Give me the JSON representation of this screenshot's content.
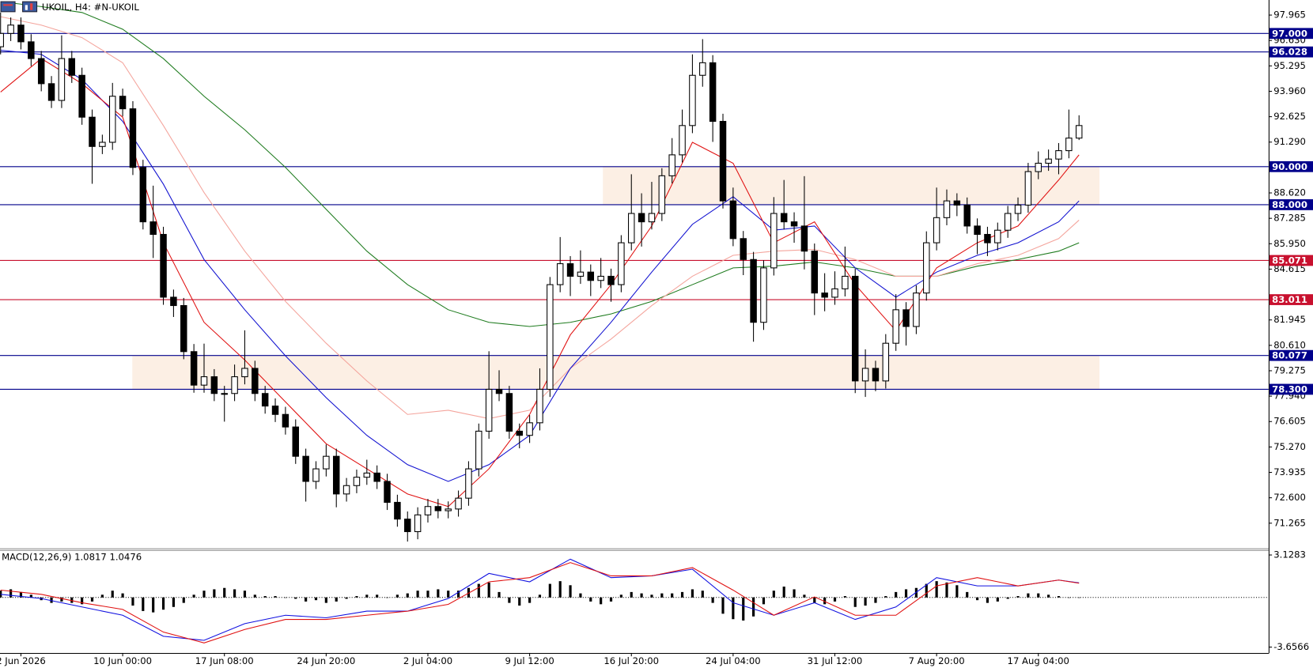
{
  "chart_data": [
    {
      "type": "candlestick",
      "title": "UKOIL, H4:  #N-UKOIL",
      "categories": [
        null,
        null,
        "2 Jun 2026",
        null,
        null,
        null,
        null,
        null,
        null,
        null,
        null,
        null,
        "10 Jun 00:00",
        null,
        null,
        null,
        null,
        null,
        null,
        null,
        null,
        null,
        "17 Jun 08:00",
        null,
        null,
        null,
        null,
        null,
        null,
        null,
        null,
        null,
        "24 Jun 20:00",
        null,
        null,
        null,
        null,
        null,
        null,
        null,
        null,
        null,
        "2 Jul 04:00",
        null,
        null,
        null,
        null,
        null,
        null,
        null,
        null,
        null,
        "9 Jul 12:00",
        null,
        null,
        null,
        null,
        null,
        null,
        null,
        null,
        null,
        "16 Jul 20:00",
        null,
        null,
        null,
        null,
        null,
        null,
        null,
        null,
        null,
        "24 Jul 04:00",
        null,
        null,
        null,
        null,
        null,
        null,
        null,
        null,
        null,
        "31 Jul 12:00",
        null,
        null,
        null,
        null,
        null,
        null,
        null,
        null,
        null,
        "7 Aug 20:00",
        null,
        null,
        null,
        null,
        null,
        null,
        null,
        null,
        null,
        "17 Aug 04:00",
        null,
        null,
        null,
        null
      ],
      "open": [
        96.3,
        97.0,
        97.44,
        96.56,
        95.68,
        94.36,
        93.48,
        95.68,
        94.8,
        92.6,
        91.06,
        91.28,
        93.7,
        93.04,
        89.96,
        87.1,
        86.44,
        83.14,
        82.7,
        80.28,
        78.52,
        78.96,
        78.08,
        78.08,
        78.96,
        79.4,
        78.08,
        77.42,
        76.98,
        76.32,
        74.78,
        73.46,
        74.12,
        74.78,
        72.8,
        73.24,
        73.68,
        73.9,
        73.46,
        72.36,
        71.48,
        70.82,
        71.7,
        72.14,
        71.92,
        72.01,
        72.58,
        74.12,
        76.1,
        78.3,
        78.08,
        76.1,
        75.88,
        76.54,
        78.3,
        83.8,
        84.9,
        84.24,
        84.46,
        84.02,
        84.24,
        83.8,
        86.0,
        87.54,
        87.1,
        87.54,
        89.52,
        90.62,
        92.16,
        94.8,
        95.46,
        92.38,
        88.2,
        86.22,
        85.12,
        81.82,
        84.68,
        87.54,
        87.1,
        86.88,
        85.56,
        83.36,
        83.14,
        83.58,
        84.24,
        78.74,
        79.4,
        78.74,
        80.72,
        82.48,
        81.6,
        83.36,
        86.0,
        87.32,
        88.2,
        87.98,
        86.88,
        86.44,
        86.0,
        86.66,
        87.54,
        87.98,
        89.74,
        90.18,
        90.4,
        90.84,
        91.5
      ],
      "high": [
        98.1,
        97.84,
        97.84,
        96.96,
        96.08,
        94.76,
        96.9,
        96.08,
        95.2,
        93.0,
        91.68,
        94.4,
        94.1,
        93.44,
        90.36,
        89.0,
        86.84,
        83.54,
        83.1,
        80.68,
        80.7,
        79.36,
        78.48,
        79.6,
        81.4,
        79.8,
        78.48,
        77.82,
        77.38,
        76.72,
        75.18,
        74.52,
        75.4,
        75.18,
        73.64,
        74.08,
        74.6,
        74.3,
        73.86,
        72.76,
        71.88,
        72.1,
        72.54,
        72.54,
        72.41,
        72.98,
        74.52,
        76.5,
        80.3,
        79.3,
        78.48,
        76.5,
        76.94,
        79.4,
        84.2,
        86.3,
        85.3,
        85.6,
        84.86,
        85.2,
        84.64,
        86.4,
        89.6,
        88.6,
        89.2,
        89.92,
        91.5,
        93.0,
        95.9,
        96.7,
        95.86,
        92.78,
        88.9,
        86.62,
        85.52,
        85.08,
        88.4,
        89.3,
        87.6,
        89.5,
        85.96,
        84.4,
        84.5,
        85.8,
        84.64,
        80.4,
        79.8,
        81.2,
        83.3,
        82.88,
        83.76,
        86.6,
        88.9,
        88.8,
        88.6,
        88.38,
        87.28,
        86.84,
        87.06,
        87.94,
        88.38,
        90.2,
        90.8,
        90.9,
        91.24,
        93.0,
        92.7
      ],
      "low": [
        95.9,
        96.6,
        96.16,
        95.28,
        93.96,
        93.08,
        93.08,
        94.4,
        92.2,
        89.1,
        90.66,
        90.88,
        92.64,
        89.56,
        86.7,
        85.2,
        82.74,
        82.1,
        79.88,
        78.12,
        78.12,
        77.68,
        76.6,
        77.68,
        78.56,
        77.68,
        77.02,
        76.58,
        75.92,
        74.38,
        72.4,
        73.06,
        73.72,
        72.1,
        72.4,
        72.84,
        73.28,
        73.06,
        71.96,
        71.08,
        70.3,
        70.42,
        71.3,
        71.52,
        71.52,
        71.61,
        72.18,
        73.72,
        75.7,
        77.68,
        75.7,
        75.2,
        75.48,
        76.14,
        77.9,
        83.4,
        83.2,
        83.84,
        83.2,
        83.62,
        82.9,
        83.4,
        85.6,
        85.8,
        86.7,
        87.14,
        89.12,
        90.22,
        91.76,
        94.2,
        91.3,
        87.8,
        85.82,
        84.3,
        80.8,
        81.42,
        84.28,
        86.7,
        86.0,
        84.6,
        82.2,
        82.4,
        82.74,
        83.18,
        78.1,
        77.9,
        78.2,
        78.34,
        80.32,
        80.6,
        81.2,
        82.96,
        85.6,
        86.92,
        87.4,
        86.48,
        85.4,
        85.3,
        85.6,
        86.26,
        87.14,
        87.58,
        89.34,
        89.78,
        89.6,
        90.44,
        91.4
      ],
      "close": [
        97.0,
        97.44,
        96.56,
        95.68,
        94.36,
        93.48,
        95.68,
        94.8,
        92.6,
        91.06,
        91.28,
        93.7,
        93.04,
        89.96,
        87.1,
        86.44,
        83.14,
        82.7,
        80.28,
        78.52,
        78.96,
        78.08,
        78.08,
        78.96,
        79.4,
        78.08,
        77.42,
        76.98,
        76.32,
        74.78,
        73.46,
        74.12,
        74.78,
        72.8,
        73.24,
        73.68,
        73.9,
        73.46,
        72.36,
        71.48,
        70.82,
        71.7,
        72.14,
        71.92,
        72.01,
        72.58,
        74.12,
        76.1,
        78.3,
        78.08,
        76.1,
        75.88,
        76.54,
        78.3,
        83.8,
        84.9,
        84.24,
        84.46,
        84.02,
        84.24,
        83.8,
        86.0,
        87.54,
        87.1,
        87.54,
        89.52,
        90.62,
        92.16,
        94.8,
        95.46,
        92.38,
        88.2,
        86.22,
        85.12,
        81.82,
        84.68,
        87.54,
        87.1,
        86.88,
        85.56,
        83.36,
        83.14,
        83.58,
        84.24,
        78.74,
        79.4,
        78.74,
        80.72,
        82.48,
        81.6,
        83.36,
        86.0,
        87.32,
        88.2,
        87.98,
        86.88,
        86.44,
        86.0,
        86.66,
        87.54,
        87.98,
        89.74,
        90.18,
        90.4,
        90.84,
        91.5,
        92.16
      ],
      "bull_color": "#ffffff",
      "bear_color": "#000000",
      "ylim": [
        69.945,
        98.757
      ],
      "yticks": [
        97.965,
        {
          "value": 96.63,
          "label": "96.630"
        },
        95.295,
        {
          "value": 93.96,
          "label": "93.960"
        },
        92.625,
        {
          "value": 91.29,
          "label": "91.290"
        },
        {
          "value": 88.62,
          "label": "88.620"
        },
        87.285,
        {
          "value": 85.95,
          "label": "85.950"
        },
        84.615,
        81.945,
        {
          "value": 80.61,
          "label": "80.610"
        },
        79.275,
        {
          "value": 77.94,
          "label": "77.940"
        },
        76.605,
        {
          "value": 75.27,
          "label": "75.270"
        },
        73.935,
        {
          "value": 72.6,
          "label": "72.600"
        },
        71.265
      ],
      "moving_averages": [
        {
          "color": "#1e7b1e",
          "x": [
            0,
            4,
            8,
            12,
            16,
            20,
            24,
            28,
            32,
            36,
            40,
            44,
            48,
            52,
            56,
            60,
            64,
            68,
            72,
            76,
            80,
            84,
            88,
            92,
            96,
            100,
            104,
            106
          ],
          "values": [
            98.67,
            98.41,
            98.1,
            97.22,
            95.68,
            93.7,
            91.94,
            89.96,
            87.76,
            85.56,
            83.8,
            82.48,
            81.82,
            81.6,
            81.82,
            82.26,
            82.92,
            83.8,
            84.68,
            84.77,
            84.99,
            84.68,
            84.24,
            84.24,
            84.77,
            85.12,
            85.56,
            86.0
          ]
        },
        {
          "color": "#f4a49c",
          "x": [
            0,
            4,
            8,
            12,
            16,
            20,
            24,
            28,
            32,
            36,
            40,
            44,
            48,
            52,
            56,
            60,
            64,
            68,
            72,
            76,
            80,
            84,
            88,
            92,
            96,
            100,
            104,
            106
          ],
          "values": [
            97.88,
            97.44,
            96.78,
            95.46,
            92.16,
            88.64,
            85.56,
            82.92,
            80.72,
            78.74,
            76.98,
            77.2,
            76.76,
            77.2,
            79.4,
            80.94,
            82.7,
            84.24,
            85.34,
            85.56,
            85.65,
            85.12,
            84.24,
            84.24,
            84.9,
            85.34,
            86.22,
            87.19
          ]
        },
        {
          "color": "#1010d0",
          "x": [
            0,
            4,
            8,
            12,
            16,
            20,
            24,
            28,
            32,
            36,
            40,
            44,
            48,
            52,
            56,
            60,
            64,
            68,
            72,
            76,
            80,
            84,
            88,
            92,
            96,
            100,
            104,
            106
          ],
          "values": [
            96.12,
            95.9,
            94.58,
            92.38,
            89.08,
            85.12,
            82.48,
            80.06,
            77.86,
            75.88,
            74.34,
            73.46,
            74.34,
            75.88,
            79.4,
            81.82,
            84.46,
            86.97,
            88.42,
            86.66,
            86.88,
            84.68,
            83.14,
            84.46,
            85.34,
            86.0,
            87.1,
            88.2
          ]
        },
        {
          "color": "#e01010",
          "x": [
            0,
            4,
            8,
            12,
            16,
            20,
            24,
            28,
            32,
            36,
            40,
            44,
            48,
            52,
            56,
            60,
            64,
            68,
            72,
            76,
            80,
            84,
            88,
            92,
            96,
            100,
            104,
            106
          ],
          "values": [
            93.92,
            95.68,
            94.36,
            92.6,
            86.0,
            81.82,
            79.84,
            77.64,
            75.44,
            74.12,
            72.8,
            72.14,
            74.12,
            76.98,
            81.16,
            83.8,
            86.88,
            91.28,
            90.18,
            86.0,
            87.1,
            83.8,
            81.38,
            84.68,
            86.0,
            86.88,
            89.3,
            90.62
          ]
        }
      ],
      "levels": [
        {
          "value": 97,
          "label": "97.000",
          "color": "#00008b"
        },
        {
          "value": 96.028,
          "label": "96.028",
          "color": "#00008b"
        },
        {
          "value": 90,
          "label": "90.000",
          "color": "#00008b"
        },
        {
          "value": 88,
          "label": "88.000",
          "color": "#00008b"
        },
        {
          "value": 85.071,
          "label": "85.071",
          "color": "#c8102e"
        },
        {
          "value": 83.011,
          "label": "83.011",
          "color": "#c8102e"
        },
        {
          "value": 80.077,
          "label": "80.077",
          "color": "#00008b"
        },
        {
          "value": 78.3,
          "label": "78.300",
          "color": "#00008b"
        }
      ],
      "zone_color": "#fcefe4"
    },
    {
      "type": "macd",
      "title": "MACD(12,26,9) 1.0817 1.0476",
      "ylim": [
        -4.088,
        3.498
      ],
      "yticks": [
        3.1283,
        -3.6566
      ],
      "histogram": {
        "color": "#000000",
        "values": [
          0.5,
          0.6,
          0.4,
          0.2,
          -0.2,
          -0.4,
          -0.3,
          -0.4,
          -0.5,
          -0.3,
          0.2,
          0.5,
          0.3,
          -0.6,
          -1.0,
          -1.1,
          -0.9,
          -0.7,
          -0.4,
          0.2,
          0.5,
          0.6,
          0.7,
          0.6,
          0.5,
          0.2,
          0.1,
          0.1,
          0,
          -0.1,
          -0.3,
          -0.2,
          -0.4,
          -0.3,
          -0.1,
          0.1,
          0.2,
          0.2,
          0,
          0.2,
          0.3,
          0.5,
          0.5,
          0.6,
          0.5,
          0.5,
          0.7,
          1.0,
          1.1,
          0.4,
          -0.4,
          -0.6,
          -0.4,
          0.2,
          1.0,
          1.2,
          0.9,
          0.3,
          -0.3,
          -0.5,
          -0.3,
          0.2,
          0.4,
          0.3,
          0.2,
          0.3,
          0.3,
          0.4,
          0.6,
          0.5,
          -0.4,
          -1.2,
          -1.6,
          -1.7,
          -1.4,
          -0.5,
          0.5,
          0.8,
          0.6,
          0.2,
          -0.4,
          -0.5,
          -0.3,
          0.1,
          -0.7,
          -0.6,
          -0.4,
          0.1,
          0.4,
          0.6,
          0.7,
          1.0,
          1.2,
          1.1,
          0.9,
          0.4,
          -0.2,
          -0.4,
          -0.3,
          -0.1,
          0.1,
          0.3,
          0.3,
          0.2,
          0.1,
          0,
          0
        ]
      },
      "series": [
        {
          "color": "#1010e0",
          "x": [
            0,
            4,
            8,
            12,
            16,
            20,
            24,
            28,
            32,
            36,
            40,
            44,
            48,
            52,
            56,
            60,
            64,
            68,
            72,
            76,
            80,
            84,
            88,
            92,
            96,
            100,
            104,
            106
          ],
          "values": [
            0.23,
            -0.08,
            -0.7,
            -1.31,
            -2.86,
            -3.16,
            -1.93,
            -1.31,
            -1.5,
            -1.01,
            -1.01,
            -0.08,
            1.77,
            1.15,
            2.82,
            1.46,
            1.59,
            2.08,
            -0.39,
            -1.31,
            -0.39,
            -1.62,
            -0.7,
            1.46,
            0.85,
            0.85,
            1.28,
            1.08
          ]
        },
        {
          "color": "#e01010",
          "x": [
            0,
            4,
            8,
            12,
            16,
            20,
            24,
            28,
            32,
            36,
            40,
            44,
            48,
            52,
            56,
            60,
            64,
            68,
            72,
            76,
            80,
            84,
            88,
            92,
            96,
            100,
            104,
            106
          ],
          "values": [
            0.54,
            0.23,
            -0.39,
            -0.88,
            -2.55,
            -3.35,
            -2.36,
            -1.62,
            -1.62,
            -1.31,
            -1.01,
            -0.51,
            1.15,
            1.46,
            2.57,
            1.59,
            1.59,
            2.2,
            0.54,
            -1.31,
            0.04,
            -1.31,
            -1.31,
            0.85,
            1.46,
            0.85,
            1.28,
            1.05
          ]
        }
      ]
    }
  ]
}
